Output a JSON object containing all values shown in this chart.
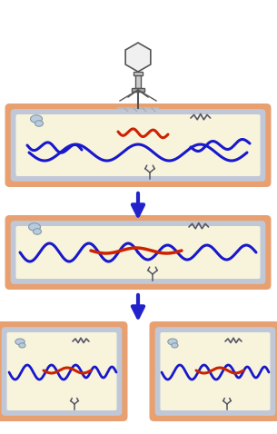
{
  "bg_color": "#FFFFFF",
  "cell_outer_color": "#E8A070",
  "cell_inner_color": "#F8F4DC",
  "cell_membrane_color": "#C0C8D8",
  "dna_blue": "#1818CC",
  "dna_red": "#CC2200",
  "arrow_color": "#2222CC",
  "phage_gray": "#555555",
  "ribosome_color": "#B8CCDD"
}
